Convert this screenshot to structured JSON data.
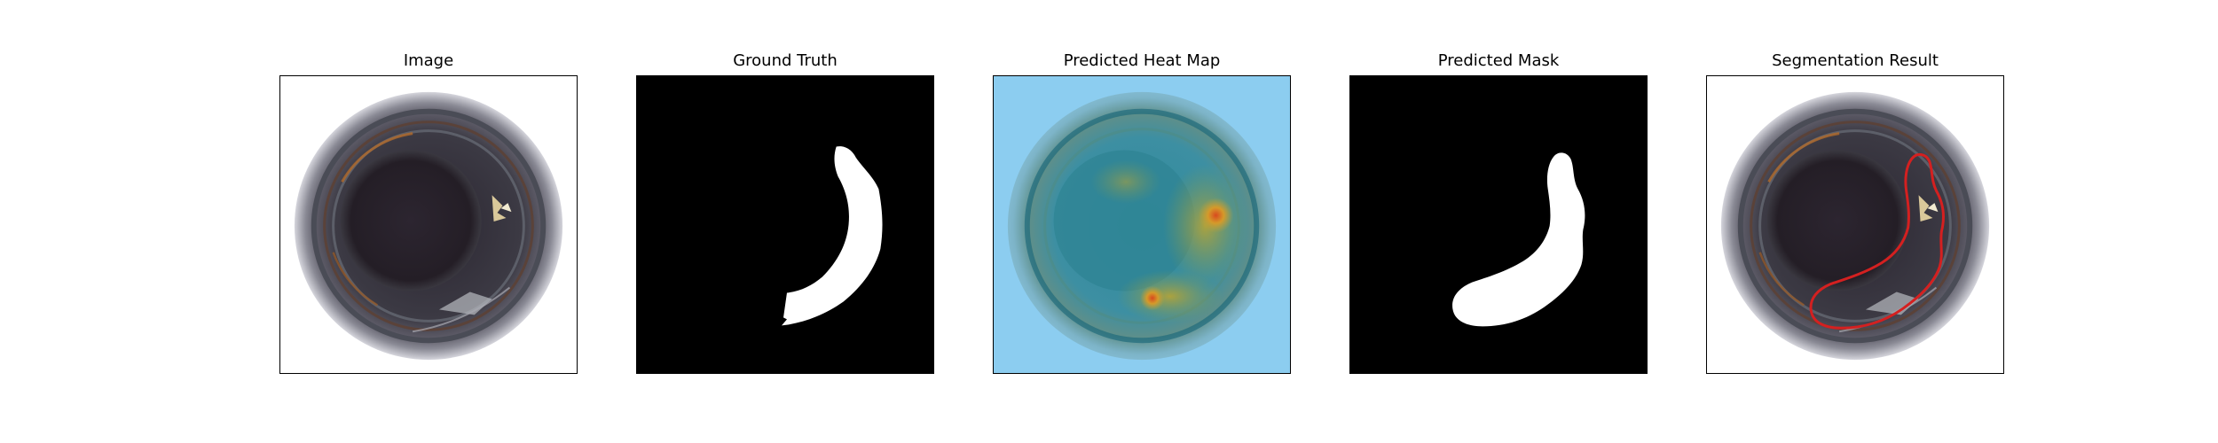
{
  "panels": [
    {
      "title": "Image"
    },
    {
      "title": "Ground Truth"
    },
    {
      "title": "Predicted Heat Map"
    },
    {
      "title": "Predicted Mask"
    },
    {
      "title": "Segmentation Result"
    }
  ],
  "colors": {
    "mask_background": "#000000",
    "mask_foreground": "#ffffff",
    "contour": "#d42020",
    "heatmap_background": "#8ccdf0"
  }
}
